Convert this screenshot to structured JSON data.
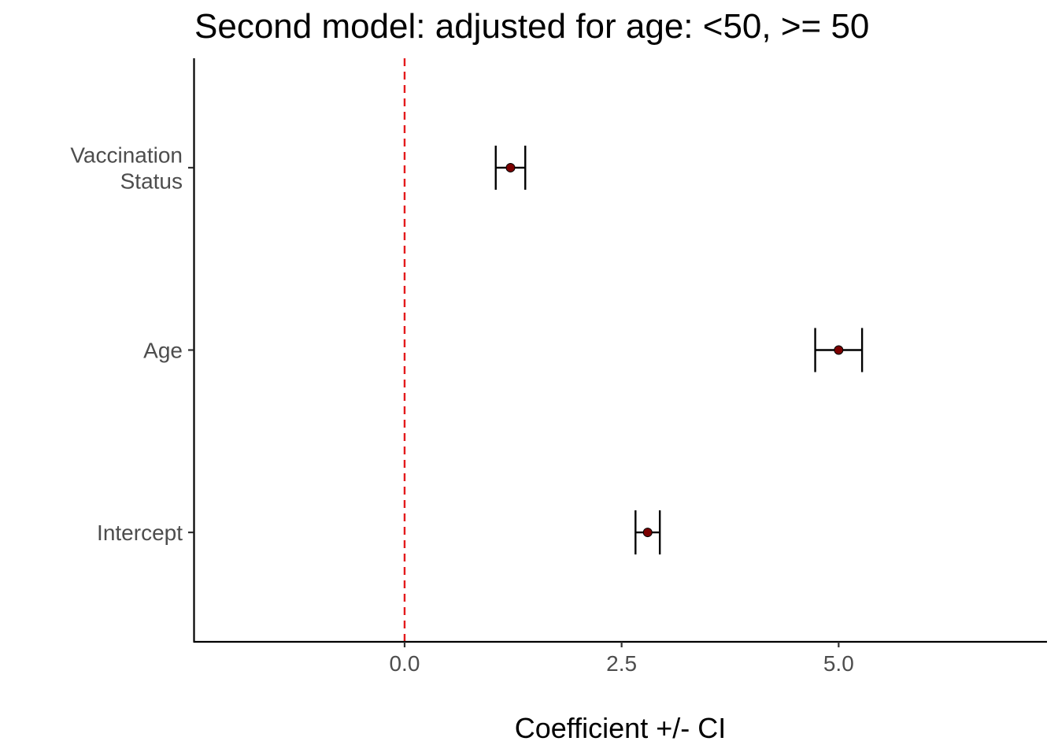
{
  "chart_data": {
    "type": "scatter",
    "title": "Second model: adjusted for age: <50, >= 50",
    "xlabel": "Coefficient +/- CI",
    "ylabel": "",
    "categories": [
      [
        "Vaccination",
        "Status"
      ],
      [
        "Age"
      ],
      [
        "Intercept"
      ]
    ],
    "points": [
      {
        "term": "Vaccination Status",
        "estimate": 1.22,
        "ci_low": 1.05,
        "ci_high": 1.39
      },
      {
        "term": "Age",
        "estimate": 5.0,
        "ci_low": 4.73,
        "ci_high": 5.27
      },
      {
        "term": "Intercept",
        "estimate": 2.8,
        "ci_low": 2.66,
        "ci_high": 2.94
      }
    ],
    "xlim": [
      -2.43,
      7.4
    ],
    "x_ticks": [
      "0.0",
      "2.5",
      "5.0"
    ],
    "x_tick_values": [
      0,
      2.5,
      5.0
    ],
    "reference_line": {
      "x": 0,
      "color": "#e41a1c",
      "style": "dashed"
    },
    "point_color": "#7b0000",
    "errorbar_color": "#000000",
    "grid": false,
    "legend": "none"
  }
}
